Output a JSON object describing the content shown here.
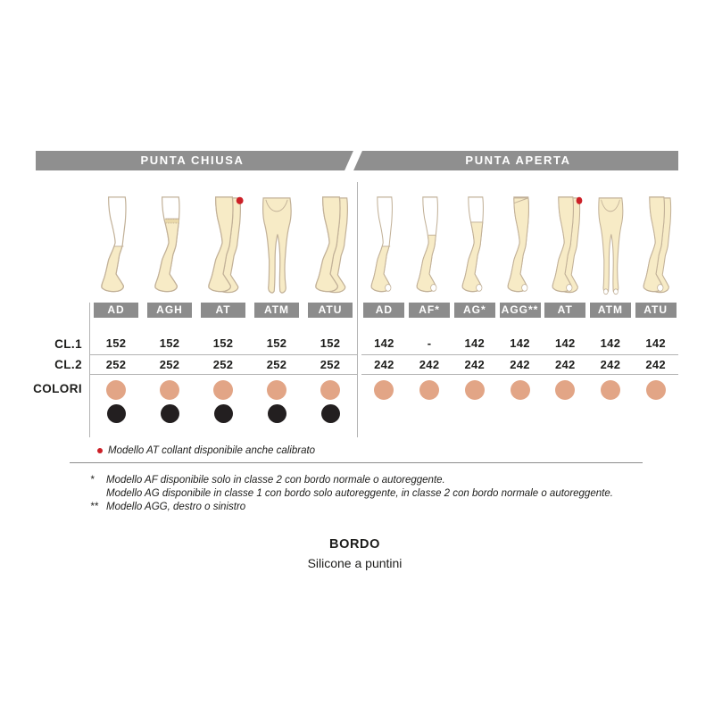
{
  "colors": {
    "band_gray": "#8f8f8f",
    "box_gray": "#8c8c8c",
    "text_dark": "#1d1d1b",
    "skin": "#e2a586",
    "black_dot": "#231f20",
    "red": "#cc2027",
    "leg_fill": "#f7ebc6",
    "leg_outline": "#c2b198",
    "line_gray": "#b3b3b3"
  },
  "row_labels": {
    "cl1": "CL.1",
    "cl2": "CL.2",
    "colori": "COLORI"
  },
  "sections": [
    {
      "title": "PUNTA CHIUSA",
      "toe": "closed",
      "columns": [
        {
          "label": "AD",
          "leg": "ad",
          "cl1": "152",
          "cl2": "252",
          "dots": [
            "skin",
            "black"
          ]
        },
        {
          "label": "AGH",
          "leg": "agh",
          "cl1": "152",
          "cl2": "252",
          "dots": [
            "skin",
            "black"
          ]
        },
        {
          "label": "AT",
          "leg": "at",
          "cl1": "152",
          "cl2": "252",
          "dots": [
            "skin",
            "black"
          ],
          "red_dot": true
        },
        {
          "label": "ATM",
          "leg": "atm",
          "cl1": "152",
          "cl2": "252",
          "dots": [
            "skin",
            "black"
          ]
        },
        {
          "label": "ATU",
          "leg": "atu",
          "cl1": "152",
          "cl2": "252",
          "dots": [
            "skin",
            "black"
          ]
        }
      ]
    },
    {
      "title": "PUNTA APERTA",
      "toe": "open",
      "columns": [
        {
          "label": "AD",
          "leg": "ad",
          "cl1": "142",
          "cl2": "242",
          "dots": [
            "skin"
          ]
        },
        {
          "label": "AF*",
          "leg": "af",
          "cl1": "-",
          "cl2": "242",
          "dots": [
            "skin"
          ]
        },
        {
          "label": "AG*",
          "leg": "ag",
          "cl1": "142",
          "cl2": "242",
          "dots": [
            "skin"
          ]
        },
        {
          "label": "AGG**",
          "leg": "agg",
          "cl1": "142",
          "cl2": "242",
          "dots": [
            "skin"
          ]
        },
        {
          "label": "AT",
          "leg": "at",
          "cl1": "142",
          "cl2": "242",
          "dots": [
            "skin"
          ],
          "red_dot": true
        },
        {
          "label": "ATM",
          "leg": "atm",
          "cl1": "142",
          "cl2": "242",
          "dots": [
            "skin"
          ]
        },
        {
          "label": "ATU",
          "leg": "atu",
          "cl1": "142",
          "cl2": "242",
          "dots": [
            "skin"
          ]
        }
      ]
    }
  ],
  "note_calibrato": "Modello AT collant disponibile anche calibrato",
  "footnotes": [
    {
      "marker": "*",
      "text": "Modello AF disponibile solo in classe 2 con bordo normale o autoreggente."
    },
    {
      "marker": "",
      "text": "Modello AG disponibile in classe 1 con bordo solo autoreggente, in classe 2 con bordo normale o autoreggente."
    },
    {
      "marker": "**",
      "text": "Modello AGG, destro o sinistro"
    }
  ],
  "bordo": {
    "title": "BORDO",
    "subtitle": "Silicone a puntini"
  }
}
